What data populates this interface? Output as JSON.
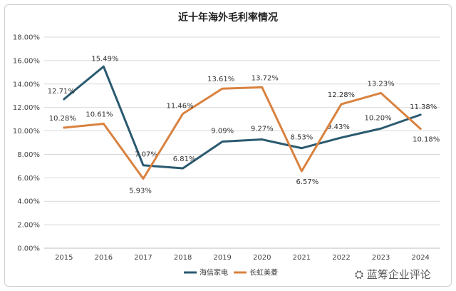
{
  "chart_data": {
    "type": "line",
    "title": "近十年海外毛利率情况",
    "categories": [
      "2015",
      "2016",
      "2017",
      "2018",
      "2019",
      "2020",
      "2021",
      "2022",
      "2023",
      "2024"
    ],
    "ylim": [
      0,
      18
    ],
    "yticks": [
      "0.00%",
      "2.00%",
      "4.00%",
      "6.00%",
      "8.00%",
      "10.00%",
      "12.00%",
      "14.00%",
      "16.00%",
      "18.00%"
    ],
    "grid": true,
    "legend_position": "bottom",
    "series": [
      {
        "name": "海信家电",
        "color": "#2a5a70",
        "values": [
          12.71,
          15.49,
          7.07,
          6.81,
          9.09,
          9.27,
          8.53,
          9.43,
          10.2,
          11.38
        ],
        "labels": [
          "12.71%",
          "15.49%",
          "7.07%",
          "6.81%",
          "9.09%",
          "9.27%",
          "8.53%",
          "9.43%",
          "10.20%",
          "11.38%"
        ]
      },
      {
        "name": "长虹美菱",
        "color": "#d9823f",
        "values": [
          10.28,
          10.61,
          5.93,
          11.46,
          13.61,
          13.72,
          6.57,
          12.28,
          13.23,
          10.18
        ],
        "labels": [
          "10.28%",
          "10.61%",
          "5.93%",
          "11.46%",
          "13.61%",
          "13.72%",
          "6.57%",
          "12.28%",
          "13.23%",
          "10.18%"
        ]
      }
    ]
  },
  "watermark": "蓝筹企业评论"
}
